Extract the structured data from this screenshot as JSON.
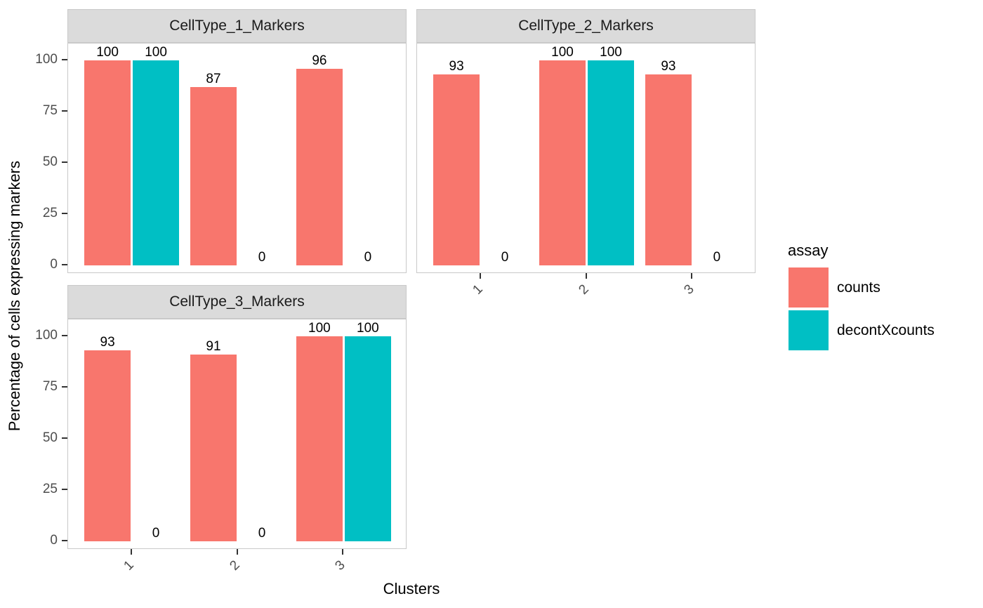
{
  "chart_data": {
    "type": "bar",
    "xlabel": "Clusters",
    "ylabel": "Percentage of cells expressing markers",
    "categories": [
      "1",
      "2",
      "3"
    ],
    "yticks": [
      "0",
      "25",
      "50",
      "75",
      "100"
    ],
    "ylim": [
      0,
      100
    ],
    "grid": false,
    "legend": {
      "title": "assay",
      "position": "right",
      "entries": [
        "counts",
        "decontXcounts"
      ]
    },
    "series_colors": {
      "counts": "#F8766D",
      "decontXcounts": "#00BFC4"
    },
    "facets": [
      {
        "title": "CellType_1_Markers",
        "series": [
          {
            "name": "counts",
            "values": [
              100,
              87,
              96
            ]
          },
          {
            "name": "decontXcounts",
            "values": [
              100,
              0,
              0
            ]
          }
        ]
      },
      {
        "title": "CellType_2_Markers",
        "series": [
          {
            "name": "counts",
            "values": [
              93,
              100,
              93
            ]
          },
          {
            "name": "decontXcounts",
            "values": [
              0,
              100,
              0
            ]
          }
        ]
      },
      {
        "title": "CellType_3_Markers",
        "series": [
          {
            "name": "counts",
            "values": [
              93,
              91,
              100
            ]
          },
          {
            "name": "decontXcounts",
            "values": [
              0,
              0,
              100
            ]
          }
        ]
      }
    ],
    "style_colors": {
      "strip_background": "#DBDBDB",
      "panel_border": "#C9C9C9",
      "axis_text": "#4D4D4D",
      "tick_mark": "#333333",
      "bar_label": "#000000",
      "background": "#FFFFFF"
    }
  }
}
